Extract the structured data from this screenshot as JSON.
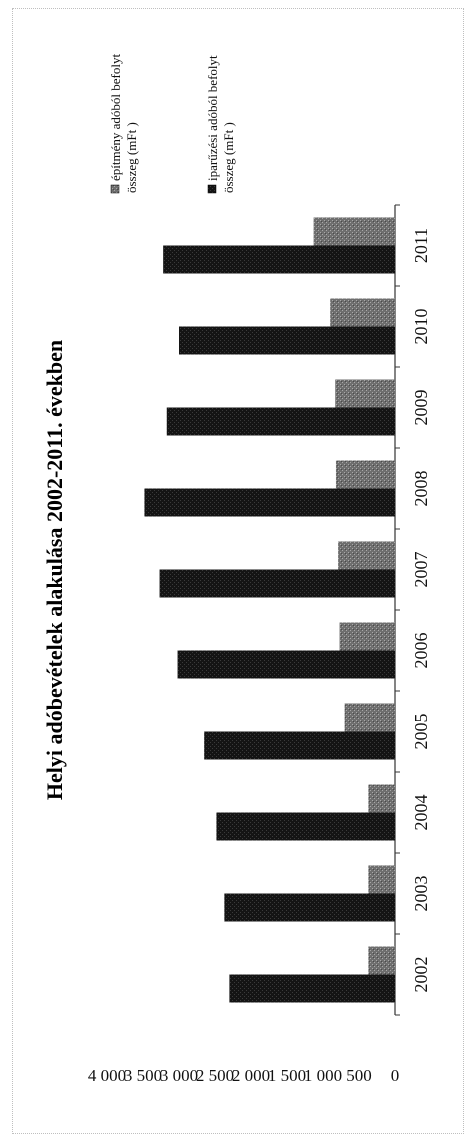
{
  "chart_data": {
    "type": "bar",
    "orientation": "rotated-90",
    "title": "Helyi adóbevételek alakulása 2002-2011. években",
    "categories": [
      "2002",
      "2003",
      "2004",
      "2005",
      "2006",
      "2007",
      "2008",
      "2009",
      "2010",
      "2011"
    ],
    "series": [
      {
        "name": "iparűzési adóból befolyt összeg (mFt )",
        "color": "#1c1c1c",
        "values": [
          2300,
          2370,
          2480,
          2650,
          3020,
          3270,
          3480,
          3170,
          3000,
          3220
        ]
      },
      {
        "name": "építmény adóból befolyt összeg (mFt )",
        "color": "#7a7a7a",
        "values": [
          370,
          370,
          370,
          700,
          770,
          790,
          820,
          830,
          900,
          1130
        ]
      }
    ],
    "yticks": [
      "0",
      "500",
      "1 000",
      "1 500",
      "2 000",
      "2 500",
      "3 000",
      "3 500",
      "4 000"
    ],
    "ylim": [
      0,
      4000
    ],
    "legend_position": "right"
  }
}
